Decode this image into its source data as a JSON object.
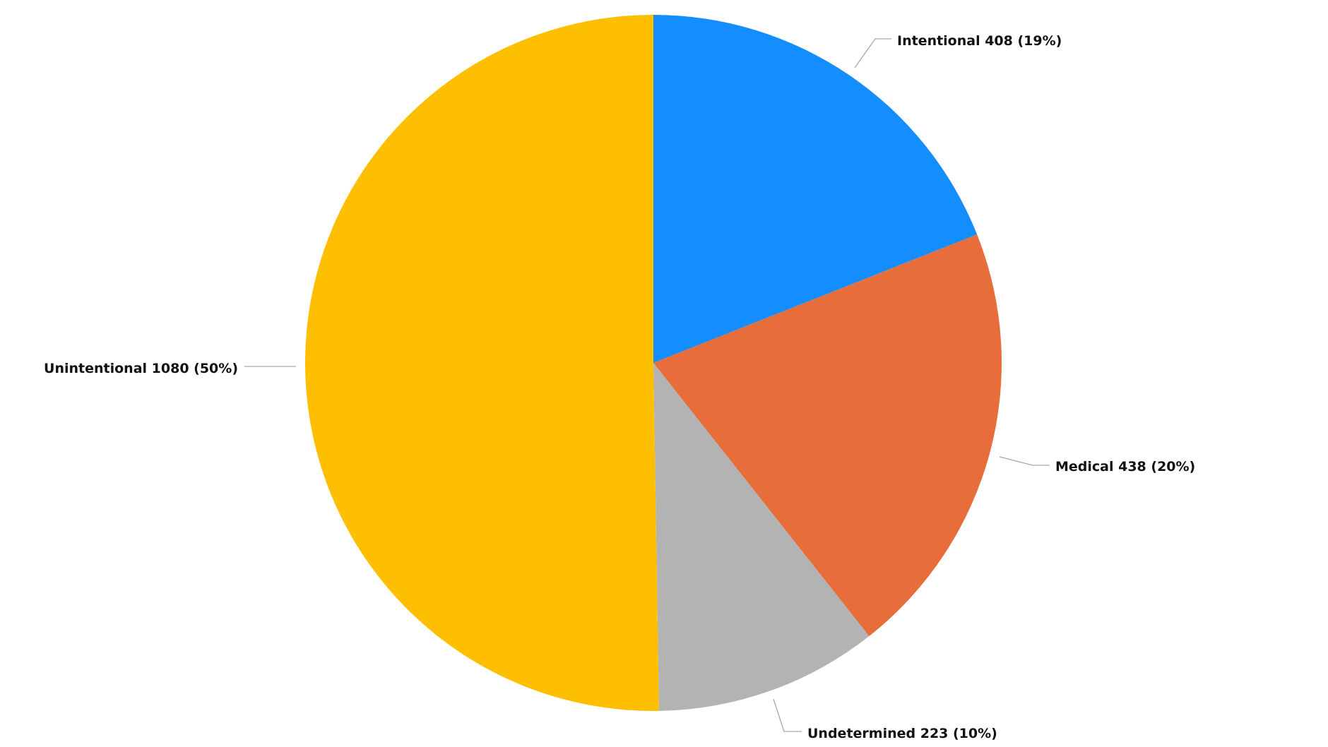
{
  "chart_data": {
    "type": "pie",
    "start_angle": "top",
    "direction": "clockwise",
    "legend": "none",
    "slices": [
      {
        "label": "Intentional",
        "value": 408,
        "percent_label": "(19%)",
        "display": "Intentional 408 (19%)",
        "color": "#148DFF"
      },
      {
        "label": "Medical",
        "value": 438,
        "percent_label": "(20%)",
        "display": "Medical 438 (20%)",
        "color": "#E76D3B"
      },
      {
        "label": "Undetermined",
        "value": 223,
        "percent_label": "(10%)",
        "display": "Undetermined 223 (10%)",
        "color": "#B3B3B3"
      },
      {
        "label": "Unintentional",
        "value": 1080,
        "percent_label": "(50%)",
        "display": "Unintentional 1080 (50%)",
        "color": "#FDBF00"
      }
    ]
  }
}
